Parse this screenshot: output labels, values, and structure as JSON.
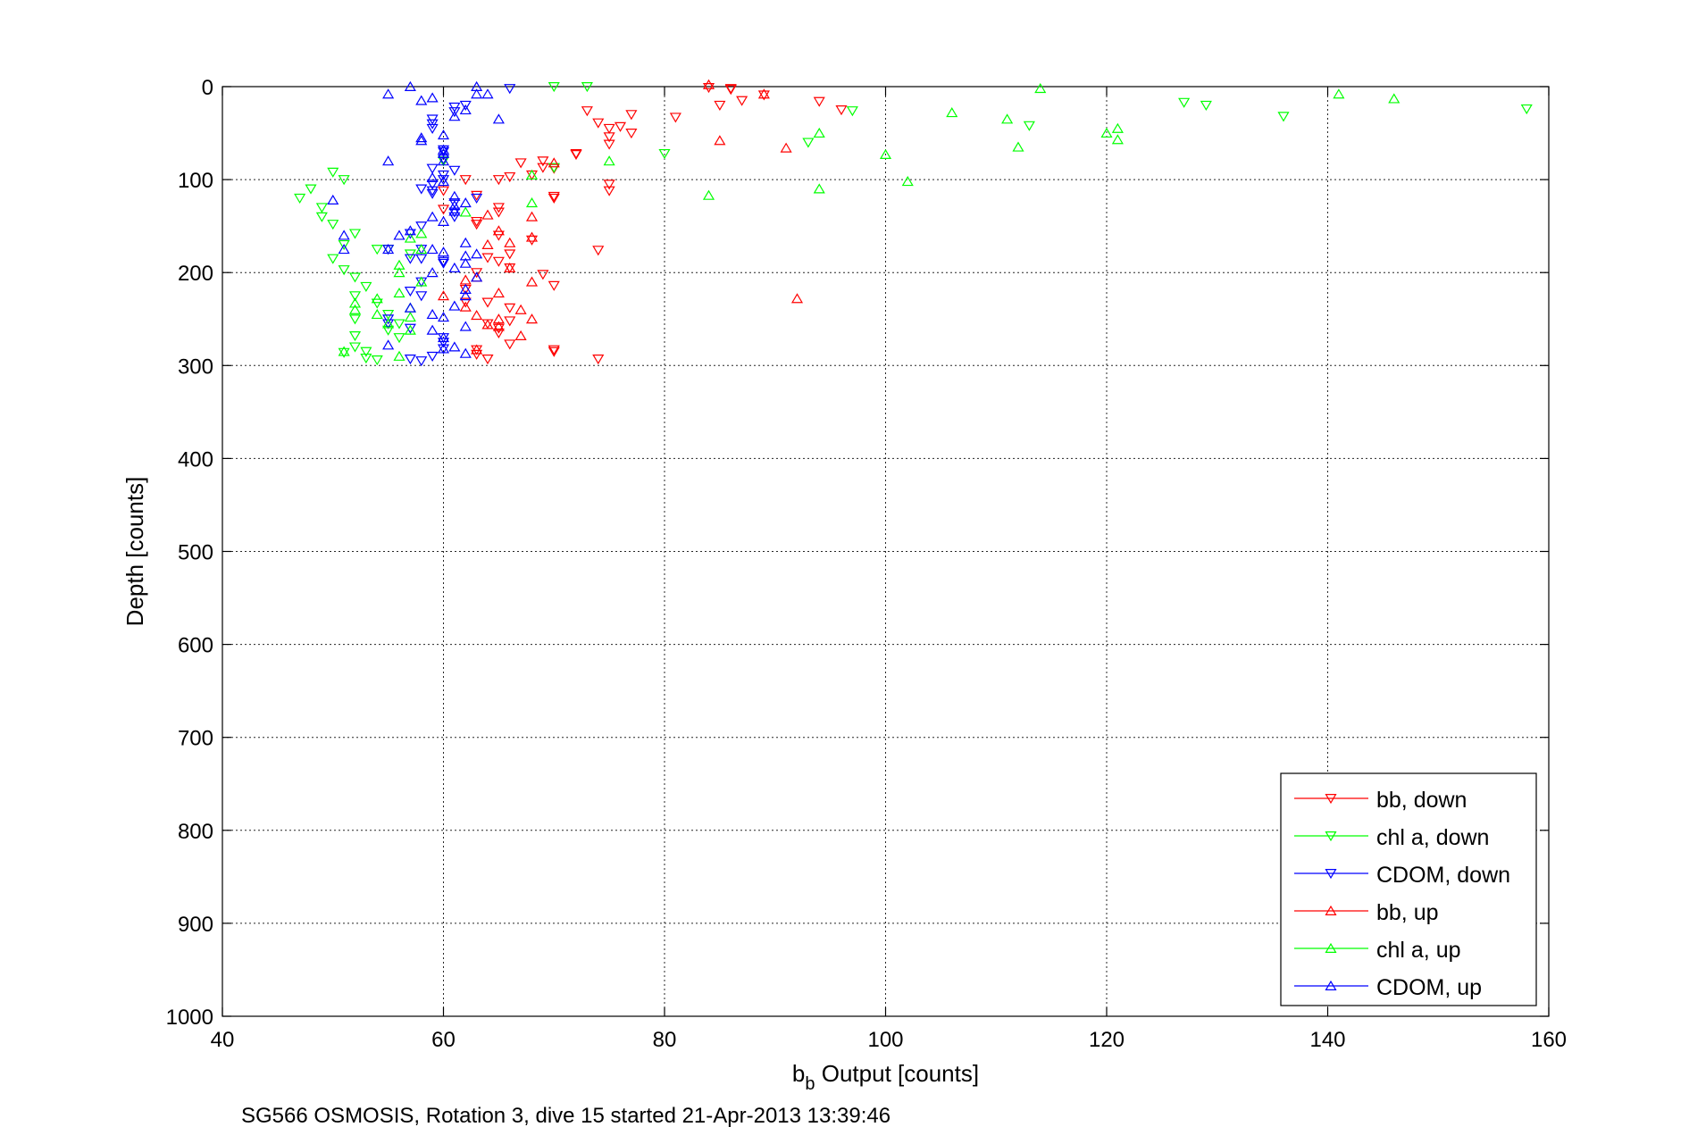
{
  "chart_data": {
    "type": "scatter",
    "title": "",
    "xlabel_main": "b",
    "xlabel_sub": "b",
    "xlabel_rest": " Output [counts]",
    "ylabel": "Depth [counts]",
    "caption": "SG566 OSMOSIS, Rotation 3, dive 15 started 21-Apr-2013 13:39:46",
    "xlim": [
      40,
      160
    ],
    "ylim": [
      0,
      1000
    ],
    "y_reversed": true,
    "xticks": [
      40,
      60,
      80,
      100,
      120,
      140,
      160
    ],
    "yticks": [
      0,
      100,
      200,
      300,
      400,
      500,
      600,
      700,
      800,
      900,
      1000
    ],
    "grid": true,
    "legend_position": "bottom-right",
    "series": [
      {
        "name": "bb, down",
        "color": "#ff0000",
        "marker": "triangle-down",
        "points": [
          [
            86,
            2
          ],
          [
            86,
            3
          ],
          [
            84,
            1
          ],
          [
            89,
            9
          ],
          [
            87,
            15
          ],
          [
            85,
            20
          ],
          [
            94,
            16
          ],
          [
            96,
            25
          ],
          [
            81,
            33
          ],
          [
            77,
            30
          ],
          [
            76,
            43
          ],
          [
            75,
            45
          ],
          [
            74,
            39
          ],
          [
            73,
            26
          ],
          [
            77,
            50
          ],
          [
            75,
            54
          ],
          [
            75,
            62
          ],
          [
            72,
            72
          ],
          [
            72,
            73
          ],
          [
            70,
            88
          ],
          [
            67,
            82
          ],
          [
            69,
            80
          ],
          [
            69,
            87
          ],
          [
            68,
            95
          ],
          [
            66,
            97
          ],
          [
            65,
            100
          ],
          [
            62,
            100
          ],
          [
            60,
            112
          ],
          [
            63,
            117
          ],
          [
            75,
            105
          ],
          [
            75,
            112
          ],
          [
            70,
            118
          ],
          [
            70,
            120
          ],
          [
            65,
            130
          ],
          [
            65,
            135
          ],
          [
            60,
            132
          ],
          [
            63,
            145
          ],
          [
            63,
            148
          ],
          [
            65,
            160
          ],
          [
            68,
            165
          ],
          [
            66,
            180
          ],
          [
            64,
            184
          ],
          [
            65,
            188
          ],
          [
            66,
            195
          ],
          [
            63,
            200
          ],
          [
            69,
            202
          ],
          [
            70,
            214
          ],
          [
            62,
            218
          ],
          [
            62,
            232
          ],
          [
            64,
            232
          ],
          [
            66,
            238
          ],
          [
            66,
            252
          ],
          [
            64,
            255
          ],
          [
            65,
            260
          ],
          [
            65,
            265
          ],
          [
            66,
            277
          ],
          [
            63,
            283
          ],
          [
            63,
            288
          ],
          [
            70,
            283
          ],
          [
            70,
            285
          ],
          [
            64,
            293
          ],
          [
            74,
            293
          ],
          [
            74,
            176
          ]
        ]
      },
      {
        "name": "chl a, down",
        "color": "#00ff00",
        "marker": "triangle-down",
        "points": [
          [
            70,
            0
          ],
          [
            73,
            0
          ],
          [
            97,
            26
          ],
          [
            129,
            20
          ],
          [
            127,
            17
          ],
          [
            136,
            32
          ],
          [
            158,
            24
          ],
          [
            113,
            42
          ],
          [
            93,
            60
          ],
          [
            80,
            72
          ],
          [
            70,
            87
          ],
          [
            60,
            80
          ],
          [
            50,
            92
          ],
          [
            51,
            100
          ],
          [
            48,
            110
          ],
          [
            47,
            120
          ],
          [
            49,
            130
          ],
          [
            49,
            140
          ],
          [
            50,
            148
          ],
          [
            52,
            158
          ],
          [
            51,
            170
          ],
          [
            54,
            175
          ],
          [
            55,
            175
          ],
          [
            57,
            180
          ],
          [
            50,
            185
          ],
          [
            51,
            197
          ],
          [
            52,
            205
          ],
          [
            53,
            215
          ],
          [
            52,
            225
          ],
          [
            54,
            233
          ],
          [
            55,
            245
          ],
          [
            52,
            250
          ],
          [
            56,
            255
          ],
          [
            55,
            262
          ],
          [
            52,
            268
          ],
          [
            56,
            270
          ],
          [
            52,
            280
          ],
          [
            53,
            285
          ],
          [
            51,
            286
          ],
          [
            53,
            292
          ],
          [
            54,
            294
          ]
        ]
      },
      {
        "name": "CDOM, down",
        "color": "#0000ff",
        "marker": "triangle-down",
        "points": [
          [
            66,
            2
          ],
          [
            61,
            22
          ],
          [
            61,
            27
          ],
          [
            62,
            20
          ],
          [
            59,
            35
          ],
          [
            59,
            40
          ],
          [
            59,
            45
          ],
          [
            60,
            68
          ],
          [
            60,
            70
          ],
          [
            60,
            78
          ],
          [
            59,
            88
          ],
          [
            61,
            90
          ],
          [
            60,
            95
          ],
          [
            60,
            100
          ],
          [
            59,
            105
          ],
          [
            58,
            110
          ],
          [
            59,
            112
          ],
          [
            59,
            115
          ],
          [
            63,
            120
          ],
          [
            61,
            125
          ],
          [
            61,
            135
          ],
          [
            61,
            140
          ],
          [
            58,
            150
          ],
          [
            57,
            158
          ],
          [
            58,
            175
          ],
          [
            55,
            175
          ],
          [
            58,
            185
          ],
          [
            57,
            185
          ],
          [
            60,
            188
          ],
          [
            60,
            190
          ],
          [
            58,
            210
          ],
          [
            58,
            225
          ],
          [
            57,
            220
          ],
          [
            55,
            255
          ],
          [
            55,
            250
          ],
          [
            57,
            260
          ],
          [
            60,
            270
          ],
          [
            60,
            275
          ],
          [
            60,
            282
          ],
          [
            59,
            290
          ],
          [
            57,
            293
          ],
          [
            58,
            295
          ]
        ]
      },
      {
        "name": "bb, up",
        "color": "#ff0000",
        "marker": "triangle-up",
        "points": [
          [
            84,
            -2
          ],
          [
            89,
            8
          ],
          [
            85,
            58
          ],
          [
            91,
            66
          ],
          [
            70,
            82
          ],
          [
            64,
            138
          ],
          [
            68,
            140
          ],
          [
            65,
            155
          ],
          [
            68,
            162
          ],
          [
            64,
            170
          ],
          [
            66,
            168
          ],
          [
            66,
            195
          ],
          [
            63,
            205
          ],
          [
            68,
            210
          ],
          [
            62,
            208
          ],
          [
            65,
            222
          ],
          [
            60,
            225
          ],
          [
            62,
            237
          ],
          [
            67,
            240
          ],
          [
            65,
            250
          ],
          [
            63,
            246
          ],
          [
            68,
            250
          ],
          [
            64,
            256
          ],
          [
            65,
            258
          ],
          [
            67,
            268
          ],
          [
            63,
            283
          ],
          [
            92,
            228
          ]
        ]
      },
      {
        "name": "chl a, up",
        "color": "#00ff00",
        "marker": "triangle-up",
        "points": [
          [
            114,
            2
          ],
          [
            141,
            8
          ],
          [
            146,
            13
          ],
          [
            106,
            28
          ],
          [
            111,
            35
          ],
          [
            94,
            50
          ],
          [
            121,
            45
          ],
          [
            120,
            50
          ],
          [
            121,
            57
          ],
          [
            112,
            65
          ],
          [
            100,
            73
          ],
          [
            75,
            80
          ],
          [
            84,
            117
          ],
          [
            94,
            110
          ],
          [
            102,
            102
          ],
          [
            68,
            95
          ],
          [
            68,
            125
          ],
          [
            62,
            135
          ],
          [
            57,
            163
          ],
          [
            58,
            158
          ],
          [
            58,
            175
          ],
          [
            56,
            192
          ],
          [
            56,
            200
          ],
          [
            58,
            210
          ],
          [
            56,
            222
          ],
          [
            54,
            228
          ],
          [
            57,
            238
          ],
          [
            52,
            240
          ],
          [
            52,
            233
          ],
          [
            54,
            245
          ],
          [
            57,
            248
          ],
          [
            55,
            255
          ],
          [
            57,
            262
          ],
          [
            51,
            285
          ],
          [
            56,
            290
          ]
        ]
      },
      {
        "name": "CDOM, up",
        "color": "#0000ff",
        "marker": "triangle-up",
        "points": [
          [
            57,
            0
          ],
          [
            55,
            8
          ],
          [
            63,
            0
          ],
          [
            58,
            15
          ],
          [
            59,
            12
          ],
          [
            65,
            35
          ],
          [
            64,
            8
          ],
          [
            63,
            8
          ],
          [
            62,
            25
          ],
          [
            61,
            32
          ],
          [
            60,
            52
          ],
          [
            58,
            55
          ],
          [
            58,
            58
          ],
          [
            60,
            68
          ],
          [
            60,
            72
          ],
          [
            60,
            80
          ],
          [
            59,
            98
          ],
          [
            60,
            102
          ],
          [
            55,
            80
          ],
          [
            50,
            122
          ],
          [
            61,
            118
          ],
          [
            62,
            125
          ],
          [
            61,
            134
          ],
          [
            61,
            128
          ],
          [
            59,
            140
          ],
          [
            60,
            145
          ],
          [
            57,
            155
          ],
          [
            56,
            160
          ],
          [
            51,
            160
          ],
          [
            51,
            175
          ],
          [
            55,
            175
          ],
          [
            59,
            175
          ],
          [
            60,
            178
          ],
          [
            62,
            182
          ],
          [
            62,
            168
          ],
          [
            63,
            180
          ],
          [
            62,
            190
          ],
          [
            61,
            195
          ],
          [
            59,
            200
          ],
          [
            63,
            205
          ],
          [
            62,
            218
          ],
          [
            62,
            225
          ],
          [
            61,
            236
          ],
          [
            57,
            238
          ],
          [
            59,
            245
          ],
          [
            60,
            248
          ],
          [
            62,
            258
          ],
          [
            59,
            262
          ],
          [
            60,
            270
          ],
          [
            55,
            278
          ],
          [
            60,
            282
          ],
          [
            61,
            280
          ],
          [
            62,
            287
          ]
        ]
      }
    ]
  }
}
